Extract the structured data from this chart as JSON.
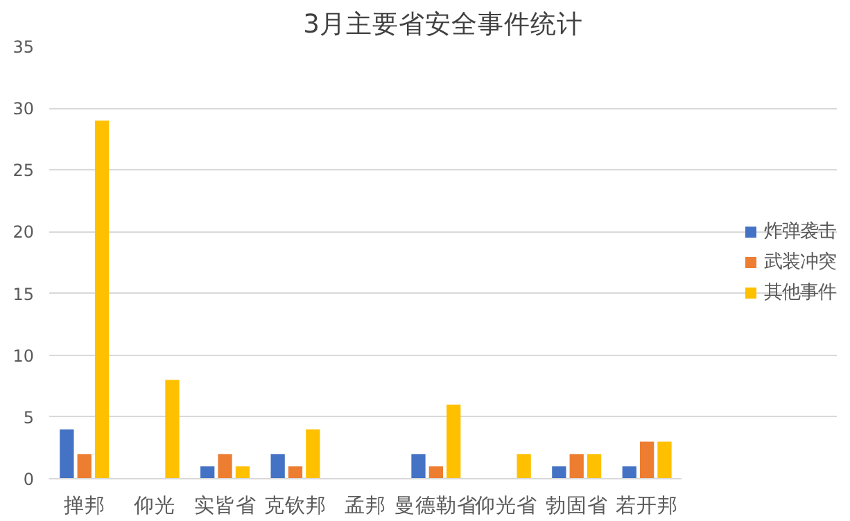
{
  "chart_data": {
    "type": "bar",
    "title": "3月主要省安全事件统计",
    "categories": [
      "掸邦",
      "仰光",
      "实皆省",
      "克钦邦",
      "孟邦",
      "曼德勒省",
      "仰光省",
      "勃固省",
      "若开邦"
    ],
    "series": [
      {
        "name": "炸弹袭击",
        "color": "#4472c4",
        "values": [
          4,
          0,
          1,
          2,
          0,
          2,
          0,
          1,
          1
        ]
      },
      {
        "name": "武装冲突",
        "color": "#ed7d31",
        "values": [
          2,
          0,
          2,
          1,
          0,
          1,
          0,
          2,
          3
        ]
      },
      {
        "name": "其他事件",
        "color": "#ffc000",
        "values": [
          29,
          8,
          1,
          4,
          0,
          6,
          2,
          2,
          3
        ]
      }
    ],
    "ylim": [
      0,
      35
    ],
    "yticks": [
      0,
      5,
      10,
      15,
      20,
      25,
      30,
      35
    ],
    "grid": "y",
    "legend": "right"
  }
}
